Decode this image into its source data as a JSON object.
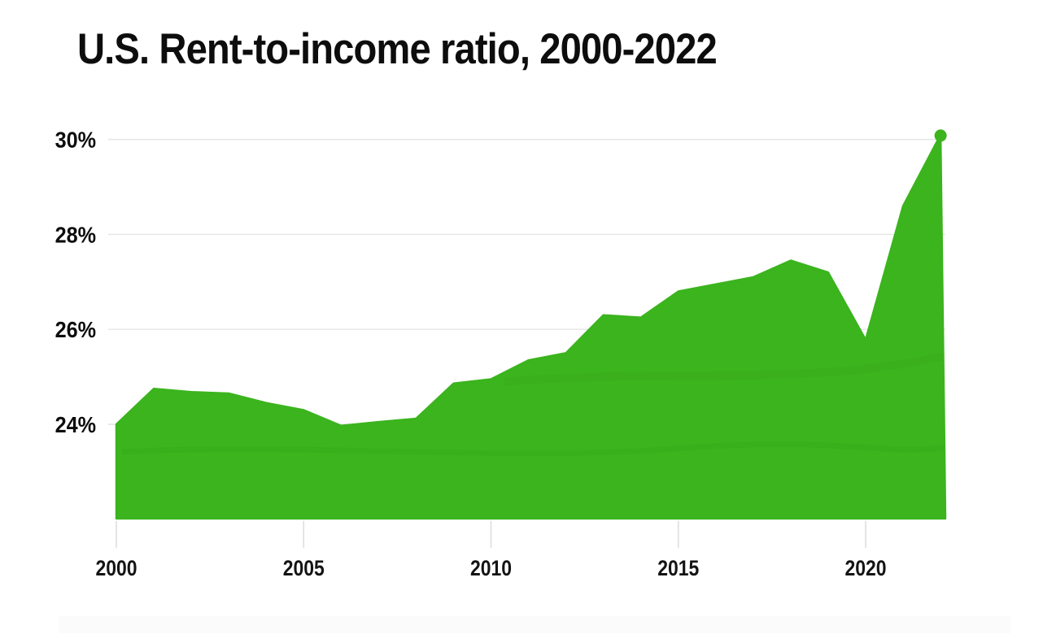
{
  "chart_data": {
    "type": "area",
    "title": "U.S. Rent-to-income ratio, 2000-2022",
    "series_name": "Rent-to-income ratio",
    "unit": "%",
    "x": [
      2000,
      2001,
      2002,
      2003,
      2004,
      2005,
      2006,
      2007,
      2008,
      2009,
      2010,
      2011,
      2012,
      2013,
      2014,
      2015,
      2016,
      2017,
      2018,
      2019,
      2020,
      2021,
      2022
    ],
    "values": [
      24.0,
      24.75,
      24.68,
      24.65,
      24.45,
      24.3,
      23.97,
      24.05,
      24.12,
      24.86,
      24.95,
      25.35,
      25.5,
      26.3,
      26.25,
      26.8,
      26.95,
      27.1,
      27.45,
      27.2,
      25.78,
      28.6,
      30.1
    ],
    "xlabel": "",
    "ylabel": "",
    "ylim": [
      22,
      30.5
    ],
    "xlim": [
      2000,
      2022
    ],
    "grid": "horizontal",
    "legend": "none",
    "yticks": [
      {
        "value": 24,
        "label": "24%"
      },
      {
        "value": 26,
        "label": "26%"
      },
      {
        "value": 28,
        "label": "28%"
      },
      {
        "value": 30,
        "label": "30%"
      }
    ],
    "xticks": [
      {
        "value": 2000,
        "label": "2000"
      },
      {
        "value": 2005,
        "label": "2005"
      },
      {
        "value": 2010,
        "label": "2010"
      },
      {
        "value": 2015,
        "label": "2015"
      },
      {
        "value": 2020,
        "label": "2020"
      }
    ],
    "colors": {
      "area_fill": "#3bb41e",
      "area_texture": "#1f7a0c",
      "end_dot": "#3bb41e",
      "gridline": "#e4e4e4",
      "tick_mark": "#dedede",
      "label_text": "#0d0d0d",
      "background": "#ffffff"
    }
  }
}
